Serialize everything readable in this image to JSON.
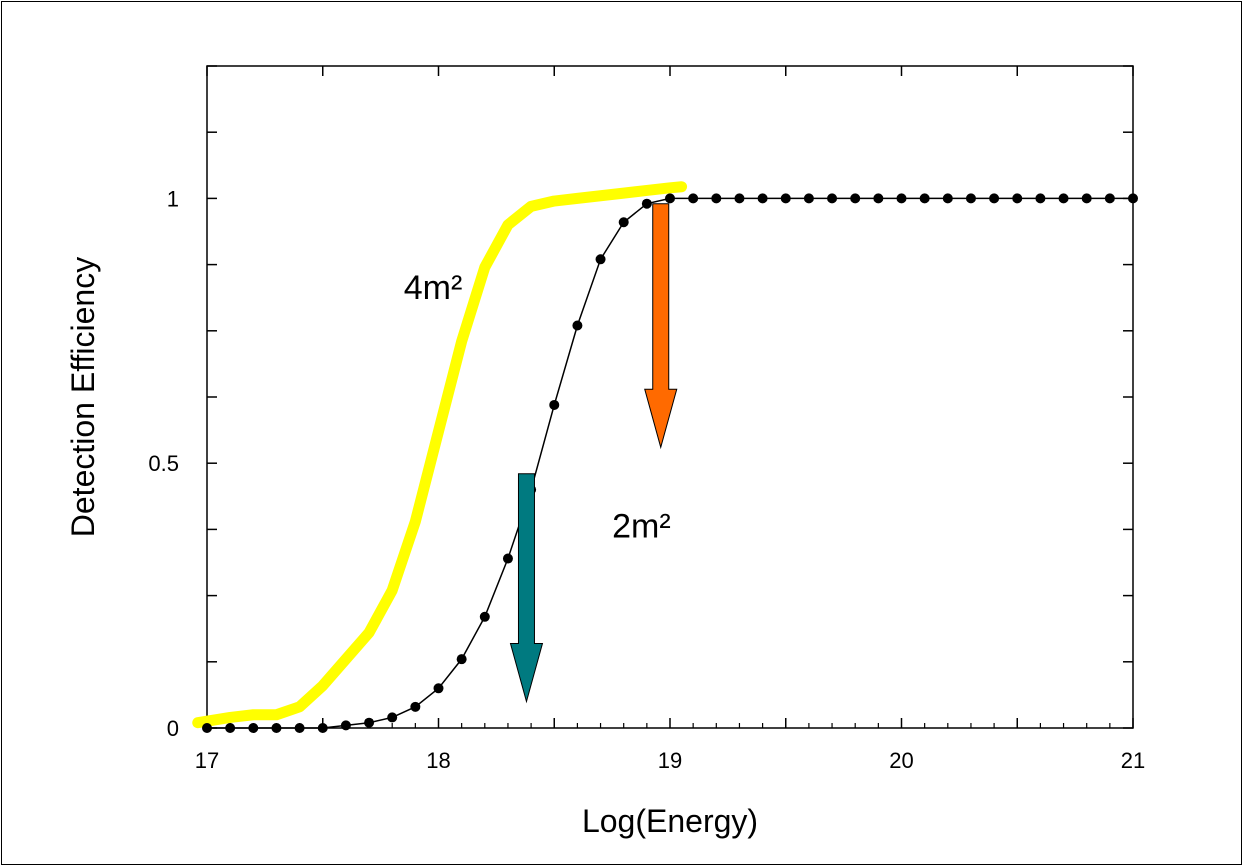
{
  "chart_data": {
    "type": "line",
    "xlabel": "Log(Energy)",
    "ylabel": "Detection Efficiency",
    "xlim": [
      17,
      21
    ],
    "ylim": [
      0,
      1.25
    ],
    "x_ticks": [
      17,
      18,
      19,
      20,
      21
    ],
    "x_tick_labels": [
      "17",
      "18",
      "19",
      "20",
      "21"
    ],
    "y_ticks": [
      0,
      0.5,
      1
    ],
    "y_tick_labels": [
      "0",
      "0.5",
      "1"
    ],
    "grid": false,
    "series": [
      {
        "name": "",
        "color": "#ffff00",
        "style": "thick-line",
        "x": [
          16.96,
          17.1,
          17.2,
          17.3,
          17.4,
          17.5,
          17.6,
          17.7,
          17.8,
          17.9,
          18.0,
          18.1,
          18.2,
          18.3,
          18.4,
          18.5,
          18.6,
          18.7,
          18.8,
          18.9,
          19.0,
          19.05
        ],
        "y": [
          0.01,
          0.02,
          0.025,
          0.025,
          0.04,
          0.08,
          0.13,
          0.18,
          0.26,
          0.39,
          0.56,
          0.73,
          0.87,
          0.95,
          0.985,
          0.995,
          1.0,
          1.005,
          1.01,
          1.015,
          1.02,
          1.022
        ]
      },
      {
        "name": "",
        "color": "#000000",
        "style": "line-with-dots",
        "x": [
          17.0,
          17.1,
          17.2,
          17.3,
          17.4,
          17.5,
          17.6,
          17.7,
          17.8,
          17.9,
          18.0,
          18.1,
          18.2,
          18.3,
          18.4,
          18.5,
          18.6,
          18.7,
          18.8,
          18.9,
          19.0,
          19.1,
          19.2,
          19.3,
          19.4,
          19.5,
          19.6,
          19.7,
          19.8,
          19.9,
          20.0,
          20.1,
          20.2,
          20.3,
          20.4,
          20.5,
          20.6,
          20.7,
          20.8,
          20.9,
          21.0
        ],
        "y": [
          0.0,
          0.0,
          0.0,
          0.0,
          0.0,
          0.0,
          0.005,
          0.01,
          0.02,
          0.04,
          0.075,
          0.13,
          0.21,
          0.32,
          0.45,
          0.61,
          0.76,
          0.885,
          0.955,
          0.99,
          1.0,
          1.0,
          1.0,
          1.0,
          1.0,
          1.0,
          1.0,
          1.0,
          1.0,
          1.0,
          1.0,
          1.0,
          1.0,
          1.0,
          1.0,
          1.0,
          1.0,
          1.0,
          1.0,
          1.0,
          1.0
        ]
      }
    ],
    "annotations": [
      {
        "text": "4m²",
        "x": 17.85,
        "y": 0.81,
        "color": "#000000"
      },
      {
        "text": "2m²",
        "x": 18.75,
        "y": 0.36,
        "color": "#000000"
      }
    ],
    "arrows": [
      {
        "name": "orange-arrow",
        "x": 18.96,
        "y_from": 0.99,
        "y_to": 0.53,
        "color": "#ff6a00"
      },
      {
        "name": "teal-arrow",
        "x": 18.38,
        "y_from": 0.48,
        "y_to": 0.05,
        "color": "#007a80"
      }
    ]
  }
}
